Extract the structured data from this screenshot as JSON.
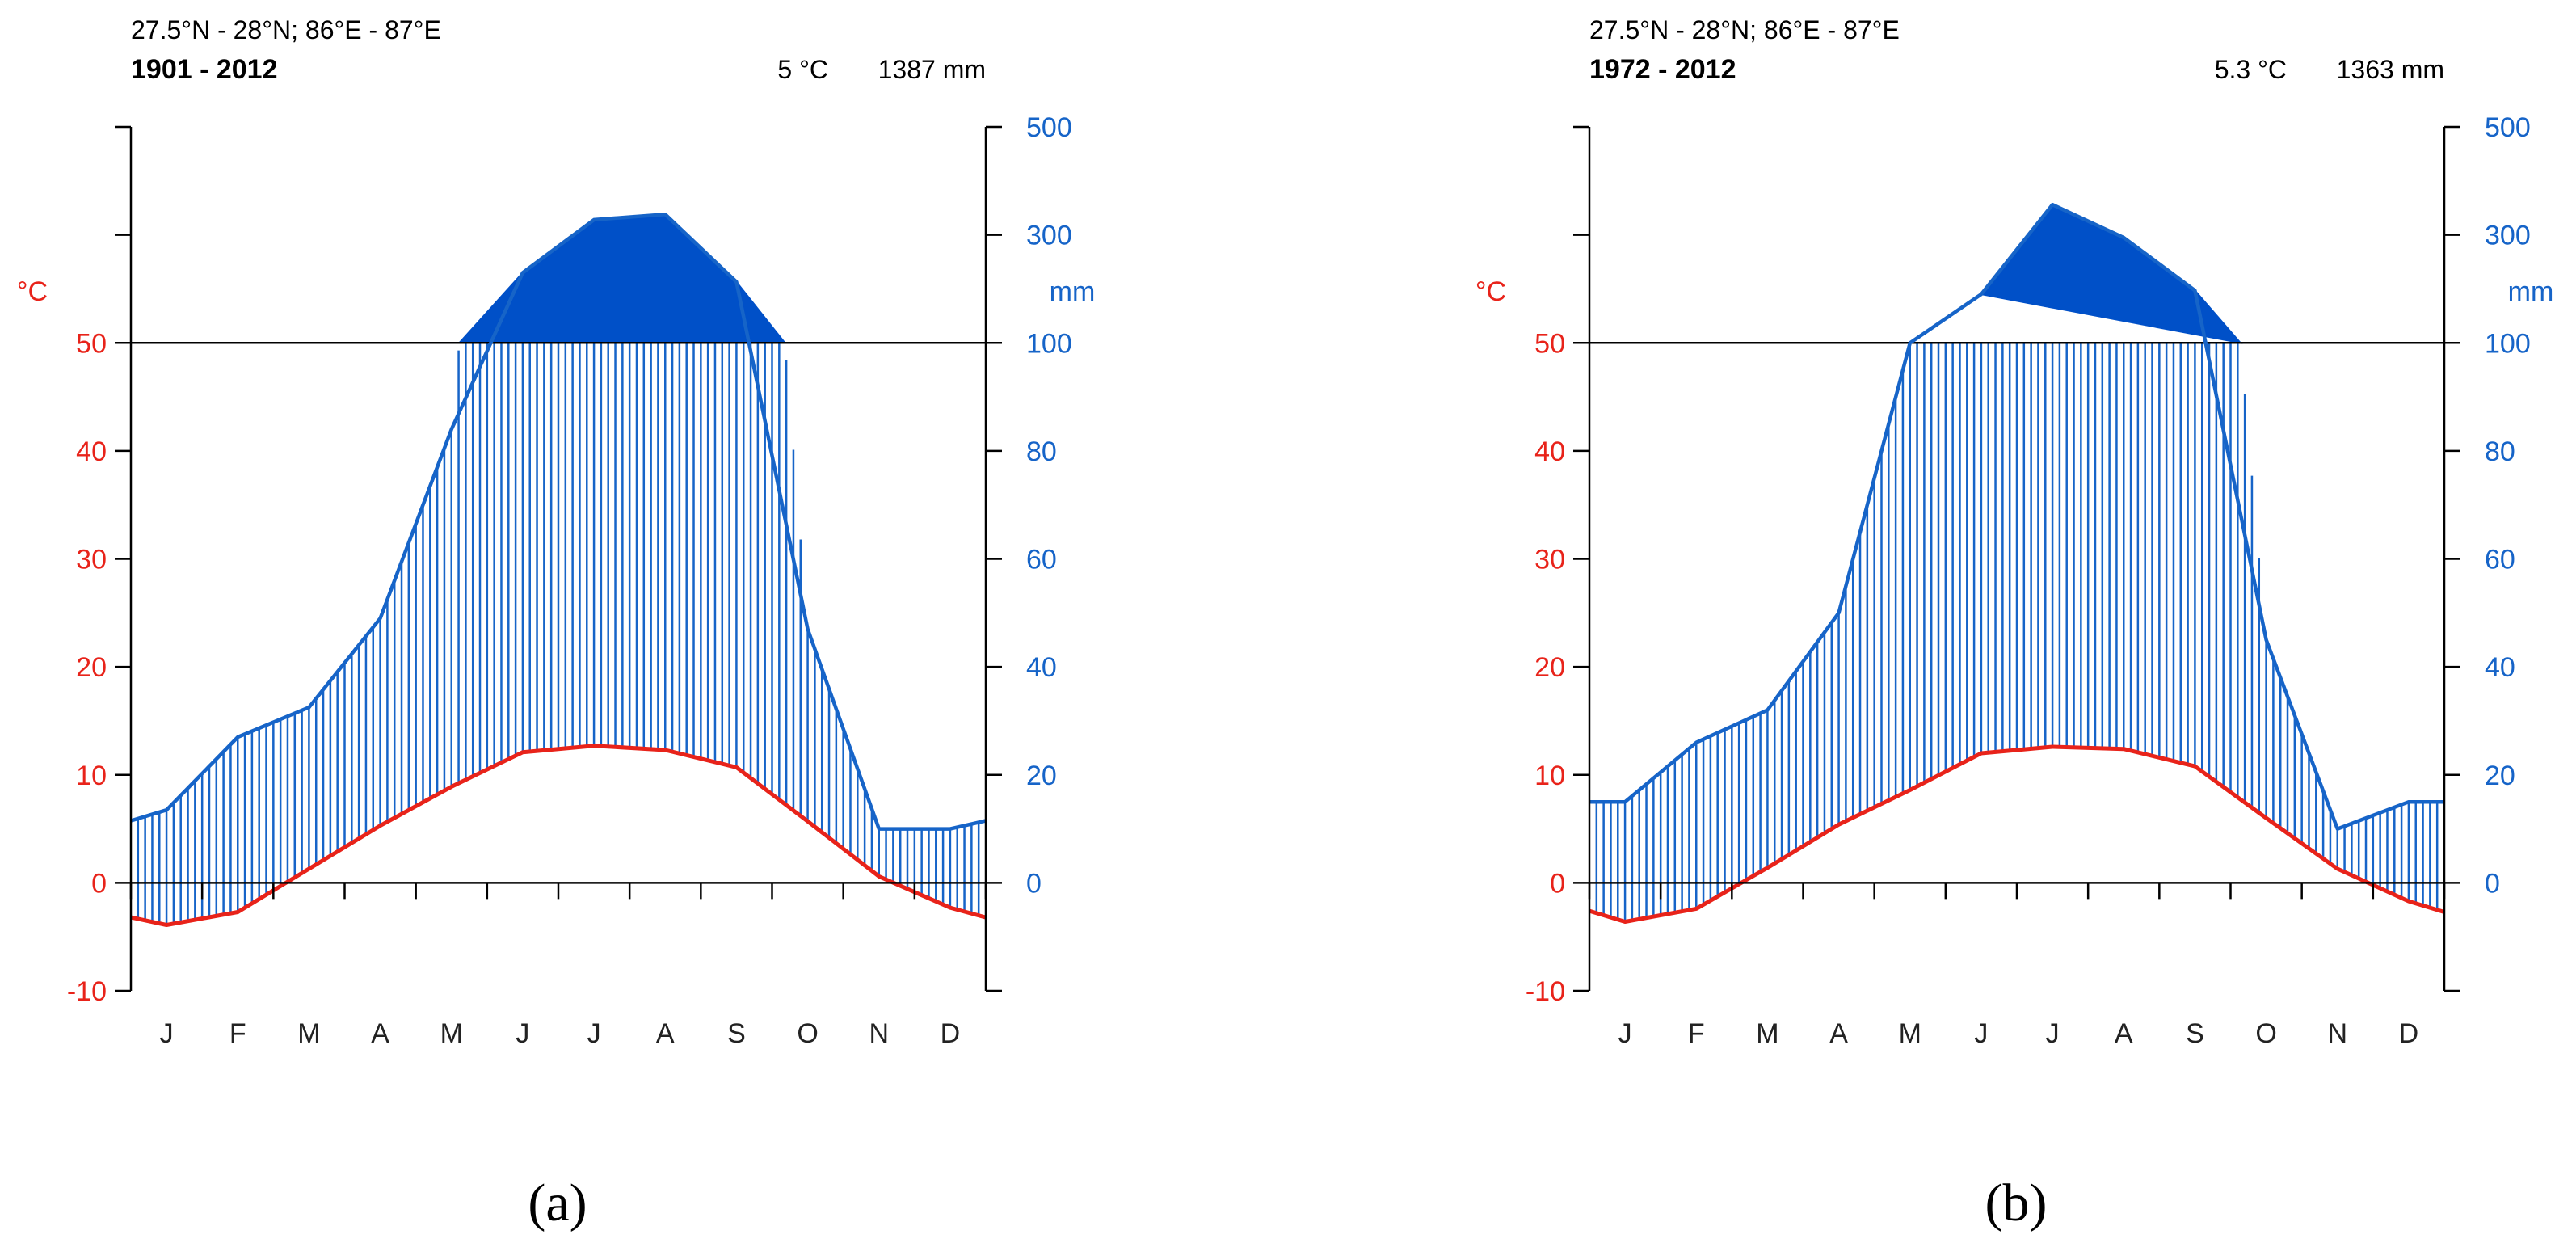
{
  "figure": {
    "panels": [
      "(a)",
      "(b)"
    ]
  },
  "colors": {
    "temperature": "#e8231a",
    "precipitation": "#1664c8",
    "fill": "#0050c8",
    "axis": "#000000"
  },
  "chart_data": [
    {
      "type": "line",
      "chart_kind": "climate-diagram",
      "location": "27.5°N - 28°N; 86°E - 87°E",
      "period": "1901 - 2012",
      "mean_temp": "5 °C",
      "annual_precip": "1387 mm",
      "temp_unit": "°C",
      "precip_unit": "mm",
      "panel_label": "(a)",
      "categories": [
        "J",
        "F",
        "M",
        "A",
        "M",
        "J",
        "J",
        "A",
        "S",
        "O",
        "N",
        "D"
      ],
      "left_axis": {
        "ticks": [
          -10,
          0,
          10,
          20,
          30,
          40,
          50
        ],
        "ylim": [
          -10,
          70
        ]
      },
      "right_axis": {
        "ticks": [
          0,
          20,
          40,
          60,
          80,
          100,
          300,
          500
        ]
      },
      "series": [
        {
          "key": "temperature",
          "x": [
            0.0,
            0.5,
            1.5,
            2.5,
            3.5,
            4.5,
            5.5,
            6.5,
            7.5,
            8.5,
            9.5,
            10.5,
            11.5,
            12.0
          ],
          "values": [
            -3.2,
            -3.9,
            -2.7,
            1.3,
            5.3,
            8.9,
            12.1,
            12.7,
            12.3,
            10.7,
            5.7,
            0.6,
            -2.3,
            -3.2
          ]
        },
        {
          "key": "precipitation",
          "x": [
            0.0,
            0.5,
            1.5,
            2.5,
            3.5,
            4.5,
            5.5,
            6.5,
            7.5,
            8.5,
            9.5,
            10.5,
            11.5,
            12.0
          ],
          "values": [
            11.5,
            13.5,
            27,
            32.5,
            49,
            84,
            230,
            328,
            338,
            213,
            47,
            10,
            10,
            11.5
          ]
        }
      ]
    },
    {
      "type": "line",
      "chart_kind": "climate-diagram",
      "location": "27.5°N - 28°N; 86°E - 87°E",
      "period": "1972 - 2012",
      "mean_temp": "5.3 °C",
      "annual_precip": "1363 mm",
      "temp_unit": "°C",
      "precip_unit": "mm",
      "panel_label": "(b)",
      "categories": [
        "J",
        "F",
        "M",
        "A",
        "M",
        "J",
        "J",
        "A",
        "S",
        "O",
        "N",
        "D"
      ],
      "left_axis": {
        "ticks": [
          -10,
          0,
          10,
          20,
          30,
          40,
          50
        ],
        "ylim": [
          -10,
          70
        ]
      },
      "right_axis": {
        "ticks": [
          0,
          20,
          40,
          60,
          80,
          100,
          300,
          500
        ]
      },
      "series": [
        {
          "key": "temperature",
          "x": [
            0.0,
            0.5,
            1.5,
            2.5,
            3.5,
            4.5,
            5.5,
            6.5,
            7.5,
            8.5,
            9.5,
            10.5,
            11.5,
            12.0
          ],
          "values": [
            -2.6,
            -3.6,
            -2.4,
            1.4,
            5.4,
            8.6,
            12.0,
            12.6,
            12.4,
            10.8,
            6.0,
            1.3,
            -1.7,
            -2.7
          ]
        },
        {
          "key": "precipitation",
          "x": [
            0.0,
            0.5,
            1.5,
            2.5,
            3.5,
            4.5,
            5.5,
            6.5,
            7.5,
            8.5,
            9.5,
            10.5,
            11.5,
            12.0
          ],
          "values": [
            15,
            15,
            26,
            32,
            50,
            100,
            190,
            356,
            295,
            197,
            45,
            10,
            15,
            15
          ]
        }
      ]
    }
  ]
}
